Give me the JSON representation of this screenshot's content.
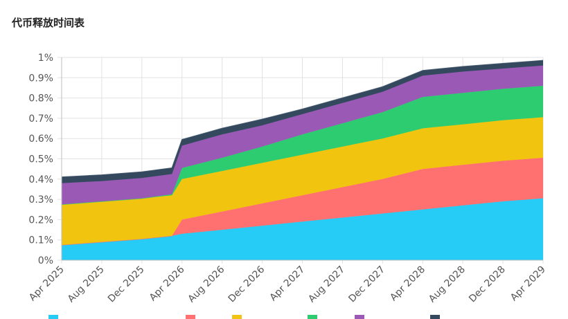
{
  "page": {
    "title": "代币释放时间表"
  },
  "chart_data": {
    "type": "area",
    "stacked": true,
    "title": "代币释放时间表",
    "x": [
      "2025-04",
      "2025-08",
      "2025-12",
      "2026-03",
      "2026-04",
      "2026-08",
      "2026-12",
      "2027-04",
      "2027-08",
      "2027-12",
      "2028-04",
      "2028-08",
      "2028-12",
      "2029-04"
    ],
    "x_ticks": [
      "Apr 2025",
      "Aug 2025",
      "Dec 2025",
      "Apr 2026",
      "Aug 2026",
      "Dec 2026",
      "Apr 2027",
      "Aug 2027",
      "Dec 2027",
      "Apr 2028",
      "Aug 2028",
      "Dec 2028",
      "Apr 2029"
    ],
    "y_ticks": [
      "0%",
      "0.1%",
      "0.2%",
      "0.3%",
      "0.4%",
      "0.5%",
      "0.6%",
      "0.7%",
      "0.8%",
      "0.9%",
      "1%"
    ],
    "ylim": [
      0,
      1
    ],
    "grid": true,
    "legend_position": "bottom",
    "series": [
      {
        "color": "#26CCF5",
        "values": [
          0.075,
          0.09,
          0.105,
          0.12,
          0.13,
          0.15,
          0.17,
          0.19,
          0.21,
          0.23,
          0.25,
          0.27,
          0.29,
          0.305
        ]
      },
      {
        "color": "#FF7070",
        "values": [
          0,
          0,
          0,
          0,
          0.07,
          0.09,
          0.11,
          0.13,
          0.15,
          0.17,
          0.2,
          0.2,
          0.2,
          0.2
        ]
      },
      {
        "color": "#F1C40F",
        "values": [
          0.2,
          0.2,
          0.2,
          0.2,
          0.2,
          0.2,
          0.2,
          0.2,
          0.2,
          0.2,
          0.2,
          0.2,
          0.2,
          0.2
        ]
      },
      {
        "color": "#2ECC71",
        "values": [
          0,
          0,
          0,
          0.005,
          0.055,
          0.065,
          0.08,
          0.1,
          0.115,
          0.13,
          0.155,
          0.155,
          0.155,
          0.155
        ]
      },
      {
        "color": "#9B59B6",
        "values": [
          0.105,
          0.1,
          0.1,
          0.1,
          0.11,
          0.115,
          0.105,
          0.1,
          0.1,
          0.1,
          0.105,
          0.105,
          0.1,
          0.1
        ]
      },
      {
        "color": "#34495E",
        "values": [
          0.03,
          0.03,
          0.03,
          0.03,
          0.03,
          0.03,
          0.03,
          0.025,
          0.025,
          0.025,
          0.025,
          0.025,
          0.025,
          0.025
        ]
      }
    ]
  }
}
